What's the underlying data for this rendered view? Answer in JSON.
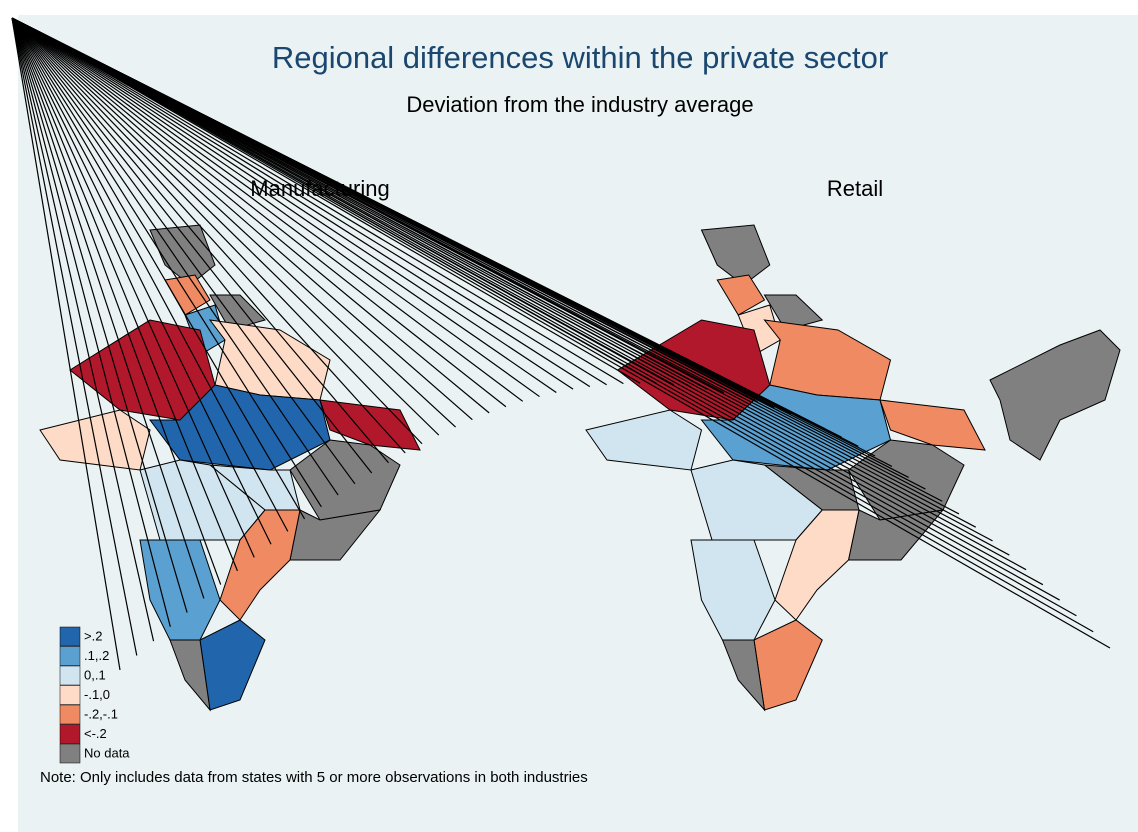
{
  "title": "Regional differences within the private sector",
  "subtitle": "Deviation from the industry average",
  "panels": [
    {
      "title": "Manufacturing"
    },
    {
      "title": "Retail"
    }
  ],
  "legend": {
    "items": [
      {
        "label": ">.2",
        "color": "#2166ac"
      },
      {
        "label": ".1,.2",
        "color": "#5aa0d0"
      },
      {
        "label": "0,.1",
        "color": "#d1e5f0"
      },
      {
        "label": "-.1,0",
        "color": "#fddbc7"
      },
      {
        "label": "-.2,-.1",
        "color": "#ef8a62"
      },
      {
        "label": "<-.2",
        "color": "#b2182b"
      },
      {
        "label": "No data",
        "color": "#808080"
      }
    ]
  },
  "note": "Note: Only includes data from states with 5 or more observations in both industries"
}
